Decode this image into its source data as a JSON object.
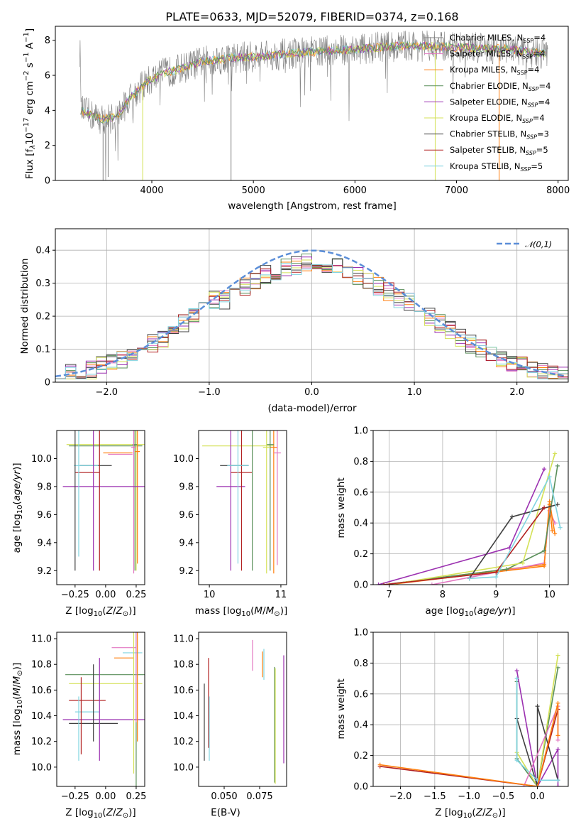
{
  "figure_title": "PLATE=0633, MJD=52079, FIBERID=0374, z=0.168",
  "colors": [
    "#808080",
    "#e377c2",
    "#ff7f0e",
    "#5a8f5a",
    "#9b30b0",
    "#d4e157",
    "#404040",
    "#b22222",
    "#80d4e0"
  ],
  "chart_data": [
    {
      "id": "spectrum",
      "type": "line",
      "xlabel": "wavelength [Angstrom, rest frame]",
      "ylabel": "Flux [f_λ 10^-17 erg cm^-2 s^-1 A^-1]",
      "xlim": [
        3050,
        8100
      ],
      "ylim": [
        0,
        8.8
      ],
      "xticks": [
        4000,
        5000,
        6000,
        7000,
        8000
      ],
      "yticks": [
        0,
        2,
        4,
        6,
        8
      ],
      "legend_position": "top-right",
      "series": [
        {
          "name": "Chabrier MILES, N_SSP=4"
        },
        {
          "name": "Salpeter MILES, N_SSP=4"
        },
        {
          "name": "Kroupa MILES, N_SSP=4"
        },
        {
          "name": "Chabrier ELODIE, N_SSP=4"
        },
        {
          "name": "Salpeter ELODIE, N_SSP=4"
        },
        {
          "name": "Kroupa ELODIE, N_SSP=4"
        },
        {
          "name": "Chabrier STELIB, N_SSP=3"
        },
        {
          "name": "Salpeter STELIB, N_SSP=5"
        },
        {
          "name": "Kroupa STELIB, N_SSP=5"
        }
      ],
      "continuum": {
        "x": [
          3300,
          3500,
          3650,
          3800,
          3950,
          4100,
          4300,
          4500,
          4800,
          5100,
          5500,
          6000,
          6500,
          7000,
          7500,
          7900
        ],
        "y": [
          4.0,
          3.5,
          3.6,
          4.8,
          5.6,
          6.1,
          6.4,
          6.8,
          7.0,
          7.1,
          7.3,
          7.5,
          7.7,
          7.6,
          7.5,
          7.2
        ]
      }
    },
    {
      "id": "residuals",
      "type": "line",
      "xlabel": "(data-model)/error",
      "ylabel": "Normed distribution",
      "xlim": [
        -2.5,
        2.5
      ],
      "ylim": [
        0,
        0.465
      ],
      "xticks": [
        -2,
        -1,
        0,
        1,
        2
      ],
      "yticks": [
        0.0,
        0.1,
        0.2,
        0.3,
        0.4
      ],
      "legend_position": "top-right",
      "normal_curve_label": "𝒩(0,1)",
      "grid": true
    },
    {
      "id": "age-vs-Z",
      "type": "scatter",
      "xlabel": "Z [log10(Z/Z⊙)]",
      "ylabel": "age  [log10(age/yr)]",
      "xlim": [
        -0.4,
        0.32
      ],
      "ylim": [
        9.1,
        10.2
      ],
      "xticks": [
        -0.25,
        0.0,
        0.25
      ],
      "yticks": [
        9.2,
        9.4,
        9.6,
        9.8,
        10.0
      ],
      "points": [
        {
          "x": 0.25,
          "y": 10.1,
          "xerr": 0.06,
          "yerr": 0.05
        },
        {
          "x": 0.0,
          "y": 10.05,
          "xerr": 0.12,
          "yerr": 0.85
        },
        {
          "x": 0.25,
          "y": 10.08,
          "xerr": 0.06,
          "yerr": 0.9
        },
        {
          "x": 0.0,
          "y": 10.1,
          "xerr": 0.35,
          "yerr": 0.9
        },
        {
          "x": -0.05,
          "y": 9.8,
          "xerr": 0.35,
          "yerr": 0.6
        },
        {
          "x": 0.0,
          "y": 10.1,
          "xerr": 0.3,
          "yerr": 0.9
        },
        {
          "x": -0.1,
          "y": 9.95,
          "xerr": 0.12,
          "yerr": 0.2
        },
        {
          "x": -0.15,
          "y": 9.9,
          "xerr": 0.12,
          "yerr": 0.1
        },
        {
          "x": -0.15,
          "y": 9.95,
          "xerr": 0.12,
          "yerr": 0.1
        }
      ]
    },
    {
      "id": "age-vs-mass",
      "type": "scatter",
      "xlabel": "mass [log10(M/M⊙)]",
      "ylabel": "",
      "xlim": [
        9.85,
        11.08
      ],
      "ylim": [
        9.1,
        10.2
      ],
      "xticks": [
        10,
        11
      ],
      "yticks": [
        9.2,
        9.4,
        9.6,
        9.8,
        10.0
      ]
    },
    {
      "id": "weight-vs-age",
      "type": "line",
      "xlabel": "age  [log10(age/yr)]",
      "ylabel": "mass weight",
      "xlim": [
        6.7,
        10.35
      ],
      "ylim": [
        0,
        1.0
      ],
      "xticks": [
        7,
        8,
        9,
        10
      ],
      "yticks": [
        0.0,
        0.2,
        0.4,
        0.6,
        0.8,
        1.0
      ],
      "grid": true,
      "series": [
        {
          "x": [
            6.9,
            9.9,
            10.0,
            10.05
          ],
          "y": [
            0.0,
            0.13,
            0.52,
            0.35
          ]
        },
        {
          "x": [
            7.8,
            9.9,
            10.0,
            10.1
          ],
          "y": [
            0.0,
            0.14,
            0.48,
            0.4
          ]
        },
        {
          "x": [
            7.0,
            9.9,
            10.0,
            10.1
          ],
          "y": [
            0.0,
            0.12,
            0.54,
            0.33
          ]
        },
        {
          "x": [
            6.9,
            9.2,
            9.9,
            10.15
          ],
          "y": [
            0.0,
            0.1,
            0.22,
            0.77
          ]
        },
        {
          "x": [
            6.8,
            9.25,
            9.9
          ],
          "y": [
            0.0,
            0.24,
            0.75
          ]
        },
        {
          "x": [
            7.0,
            9.5,
            10.1
          ],
          "y": [
            0.0,
            0.14,
            0.85
          ]
        },
        {
          "x": [
            8.5,
            9.3,
            10.15
          ],
          "y": [
            0.04,
            0.44,
            0.52
          ]
        },
        {
          "x": [
            6.9,
            9.0,
            9.9
          ],
          "y": [
            0.0,
            0.08,
            0.5
          ]
        },
        {
          "x": [
            8.5,
            9.0,
            10.0,
            10.2
          ],
          "y": [
            0.04,
            0.05,
            0.7,
            0.37
          ]
        }
      ]
    },
    {
      "id": "mass-vs-Z",
      "type": "scatter",
      "xlabel": "Z [log10(Z/Z⊙)]",
      "ylabel": "mass [log10(M/M⊙)]",
      "xlim": [
        -0.4,
        0.32
      ],
      "ylim": [
        9.85,
        11.05
      ],
      "xticks": [
        -0.25,
        0.0,
        0.25
      ],
      "yticks": [
        10.0,
        10.2,
        10.4,
        10.6,
        10.8,
        11.0
      ]
    },
    {
      "id": "mass-vs-EBV",
      "type": "scatter",
      "xlabel": "E(B-V)",
      "ylabel": "",
      "xlim": [
        0.032,
        0.094
      ],
      "ylim": [
        9.85,
        11.05
      ],
      "xticks": [
        0.05,
        0.075
      ],
      "xtick_labels": [
        "0.050",
        "0.075"
      ],
      "yticks": [
        10.0,
        10.2,
        10.4,
        10.6,
        10.8,
        11.0
      ]
    },
    {
      "id": "weight-vs-Z",
      "type": "line",
      "xlabel": "Z [log10(Z/Z⊙)]",
      "ylabel": "mass weight",
      "xlim": [
        -2.4,
        0.45
      ],
      "ylim": [
        0,
        1.0
      ],
      "xticks": [
        -2.0,
        -1.5,
        -1.0,
        -0.5,
        0.0
      ],
      "yticks": [
        0.0,
        0.2,
        0.4,
        0.6,
        0.8,
        1.0
      ],
      "grid": true
    }
  ]
}
